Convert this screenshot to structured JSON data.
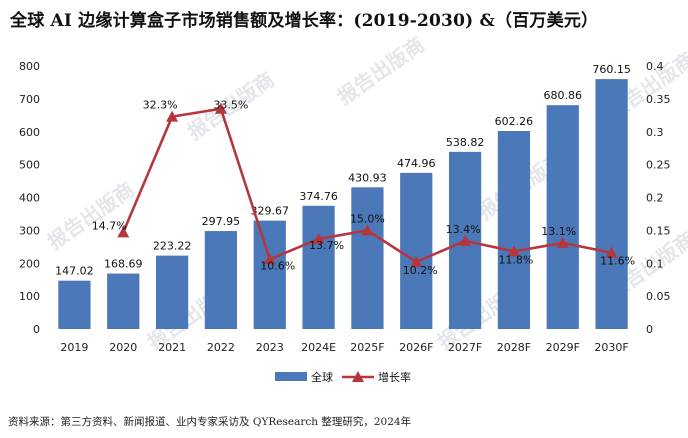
{
  "title": "全球 AI 边缘计算盒子市场销售额及增长率：(2019-2030) &（百万美元）",
  "source_note": "资料来源：第三方资料、新闻报道、业内专家采访及 QYResearch 整理研究，2024年",
  "watermark": "报告出版商",
  "colors": {
    "bar": "#4a78b8",
    "line": "#b5373d",
    "axis_text": "#222222"
  },
  "chart_data": {
    "type": "bar",
    "categories": [
      "2019",
      "2020",
      "2021",
      "2022",
      "2023",
      "2024E",
      "2025F",
      "2026F",
      "2027F",
      "2028F",
      "2029F",
      "2030F"
    ],
    "series": [
      {
        "name": "全球",
        "type": "bar",
        "axis": "left",
        "values": [
          147.02,
          168.69,
          223.22,
          297.95,
          329.67,
          374.76,
          430.93,
          474.96,
          538.82,
          602.26,
          680.86,
          760.15
        ],
        "labels": [
          "147.02",
          "168.69",
          "223.22",
          "297.95",
          "329.67",
          "374.76",
          "430.93",
          "474.96",
          "538.82",
          "602.26",
          "680.86",
          "760.15"
        ]
      },
      {
        "name": "增长率",
        "type": "line",
        "axis": "right",
        "values": [
          null,
          0.147,
          0.323,
          0.335,
          0.106,
          0.137,
          0.15,
          0.102,
          0.134,
          0.118,
          0.131,
          0.116
        ],
        "labels": [
          "",
          "14.7%",
          "32.3%",
          "33.5%",
          "10.6%",
          "13.7%",
          "15.0%",
          "10.2%",
          "13.4%",
          "11.8%",
          "13.1%",
          "11.6%"
        ]
      }
    ],
    "y_left": {
      "min": 0,
      "max": 800,
      "ticks": [
        "0",
        "100",
        "200",
        "300",
        "400",
        "500",
        "600",
        "700",
        "800"
      ]
    },
    "y_right": {
      "min": 0,
      "max": 0.4,
      "ticks": [
        "0",
        "0.05",
        "0.1",
        "0.15",
        "0.2",
        "0.25",
        "0.3",
        "0.35",
        "0.4"
      ]
    },
    "grid": false,
    "legend": "bottom-center"
  }
}
